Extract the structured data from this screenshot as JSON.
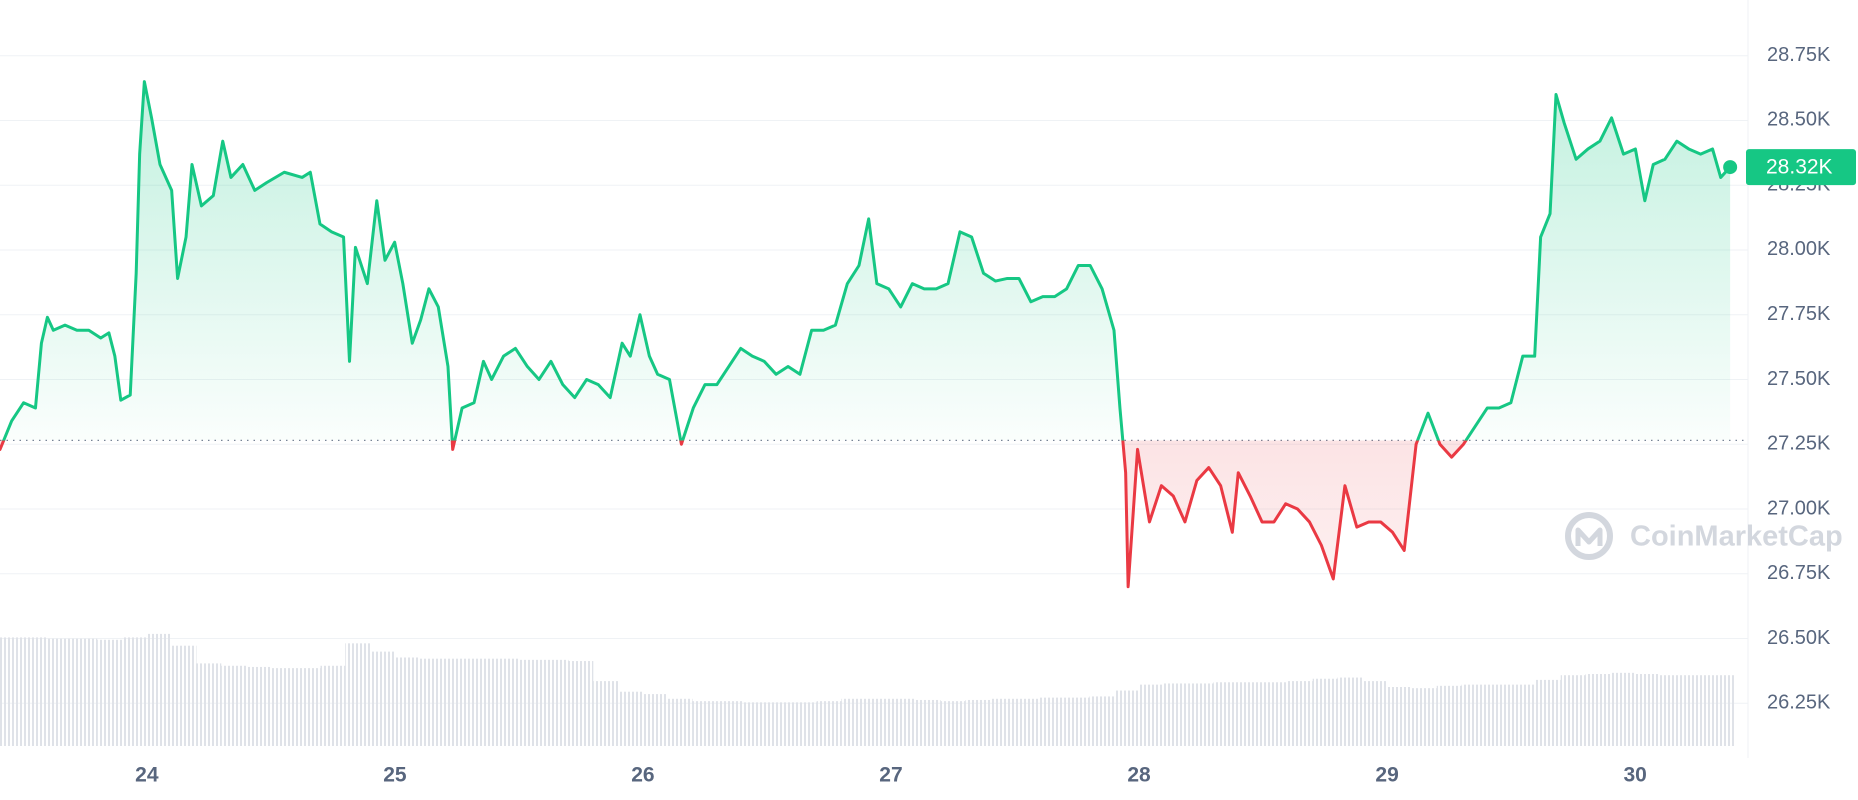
{
  "chart_data": {
    "type": "line",
    "x": [
      23.408,
      23.455,
      23.503,
      23.551,
      23.575,
      23.599,
      23.623,
      23.67,
      23.718,
      23.766,
      23.814,
      23.847,
      23.871,
      23.895,
      23.933,
      23.957,
      23.971,
      23.99,
      24.019,
      24.053,
      24.1,
      24.124,
      24.158,
      24.182,
      24.22,
      24.268,
      24.306,
      24.339,
      24.387,
      24.435,
      24.483,
      24.554,
      24.626,
      24.659,
      24.698,
      24.745,
      24.793,
      24.817,
      24.841,
      24.889,
      24.927,
      24.96,
      24.999,
      25.032,
      25.07,
      25.104,
      25.137,
      25.175,
      25.214,
      25.233,
      25.271,
      25.319,
      25.357,
      25.39,
      25.438,
      25.486,
      25.534,
      25.581,
      25.629,
      25.677,
      25.725,
      25.773,
      25.82,
      25.868,
      25.916,
      25.949,
      25.988,
      26.026,
      26.059,
      26.107,
      26.155,
      26.203,
      26.25,
      26.298,
      26.346,
      26.394,
      26.441,
      26.489,
      26.537,
      26.585,
      26.633,
      26.68,
      26.728,
      26.776,
      26.824,
      26.871,
      26.91,
      26.943,
      26.991,
      27.039,
      27.086,
      27.134,
      27.182,
      27.23,
      27.278,
      27.325,
      27.373,
      27.421,
      27.469,
      27.516,
      27.564,
      27.612,
      27.66,
      27.708,
      27.755,
      27.803,
      27.851,
      27.899,
      27.923,
      27.946,
      27.956,
      27.994,
      28.042,
      28.09,
      28.138,
      28.185,
      28.233,
      28.281,
      28.329,
      28.376,
      28.4,
      28.448,
      28.496,
      28.544,
      28.591,
      28.639,
      28.687,
      28.735,
      28.783,
      28.83,
      28.878,
      28.926,
      28.974,
      29.022,
      29.069,
      29.117,
      29.165,
      29.213,
      29.26,
      29.308,
      29.356,
      29.404,
      29.451,
      29.499,
      29.547,
      29.595,
      29.619,
      29.657,
      29.681,
      29.714,
      29.762,
      29.81,
      29.858,
      29.905,
      29.953,
      30.001,
      30.039,
      30.073,
      30.12,
      30.168,
      30.216,
      30.264,
      30.312,
      30.345,
      30.383
    ],
    "values": [
      27230,
      27340,
      27410,
      27390,
      27640,
      27740,
      27690,
      27710,
      27690,
      27690,
      27660,
      27680,
      27590,
      27420,
      27440,
      27910,
      28370,
      28650,
      28510,
      28330,
      28230,
      27890,
      28050,
      28330,
      28170,
      28210,
      28420,
      28280,
      28330,
      28230,
      28260,
      28300,
      28280,
      28300,
      28100,
      28070,
      28050,
      27570,
      28010,
      27870,
      28190,
      27960,
      28030,
      27870,
      27640,
      27730,
      27850,
      27780,
      27550,
      27230,
      27390,
      27410,
      27570,
      27500,
      27590,
      27620,
      27550,
      27500,
      27570,
      27480,
      27430,
      27500,
      27480,
      27430,
      27640,
      27590,
      27750,
      27590,
      27520,
      27500,
      27250,
      27390,
      27480,
      27480,
      27550,
      27620,
      27590,
      27570,
      27520,
      27550,
      27520,
      27690,
      27690,
      27710,
      27870,
      27940,
      28120,
      27870,
      27850,
      27780,
      27870,
      27850,
      27850,
      27870,
      28070,
      28050,
      27910,
      27880,
      27890,
      27890,
      27800,
      27820,
      27820,
      27850,
      27940,
      27940,
      27850,
      27690,
      27390,
      27140,
      26700,
      27230,
      26950,
      27090,
      27050,
      26950,
      27110,
      27160,
      27090,
      26910,
      27140,
      27050,
      26950,
      26950,
      27020,
      27000,
      26950,
      26860,
      26730,
      27090,
      26930,
      26950,
      26950,
      26910,
      26840,
      27250,
      27370,
      27250,
      27200,
      27250,
      27320,
      27390,
      27390,
      27410,
      27590,
      27590,
      28050,
      28140,
      28600,
      28490,
      28350,
      28390,
      28420,
      28510,
      28370,
      28390,
      28190,
      28330,
      28350,
      28420,
      28390,
      28370,
      28390,
      28280,
      28320
    ],
    "baseline": 27265,
    "up_color": "#16c784",
    "down_color": "#ea3943",
    "last_price_label": "28.32K",
    "xlim": [
      23.408,
      30.455
    ],
    "xticks": [
      24,
      25,
      26,
      27,
      28,
      29,
      30
    ],
    "ylim": [
      26085,
      28965
    ],
    "yticks": [
      {
        "value": 26250,
        "label": "26.25K"
      },
      {
        "value": 26500,
        "label": "26.50K"
      },
      {
        "value": 26750,
        "label": "26.75K"
      },
      {
        "value": 27000,
        "label": "27.00K"
      },
      {
        "value": 27250,
        "label": "27.25K"
      },
      {
        "value": 27500,
        "label": "27.50K"
      },
      {
        "value": 27750,
        "label": "27.75K"
      },
      {
        "value": 28000,
        "label": "28.00K"
      },
      {
        "value": 28250,
        "label": "28.25K"
      },
      {
        "value": 28500,
        "label": "28.50K"
      },
      {
        "value": 28750,
        "label": "28.75K"
      }
    ],
    "grid": true,
    "volume": {
      "color": "#dfe2e8",
      "ylim": [
        0,
        100
      ],
      "x": [
        23.45,
        23.55,
        23.65,
        23.75,
        23.85,
        23.95,
        24.05,
        24.15,
        24.25,
        24.35,
        24.45,
        24.55,
        24.65,
        24.75,
        24.85,
        24.95,
        25.05,
        25.15,
        25.25,
        25.35,
        25.45,
        25.55,
        25.65,
        25.75,
        25.85,
        25.95,
        26.05,
        26.15,
        26.25,
        26.35,
        26.45,
        26.55,
        26.65,
        26.75,
        26.85,
        26.95,
        27.05,
        27.15,
        27.25,
        27.35,
        27.45,
        27.55,
        27.65,
        27.75,
        27.85,
        27.95,
        28.05,
        28.15,
        28.25,
        28.35,
        28.45,
        28.55,
        28.65,
        28.75,
        28.85,
        28.95,
        29.05,
        29.15,
        29.25,
        29.35,
        29.45,
        29.55,
        29.65,
        29.75,
        29.85,
        29.95,
        30.05,
        30.15,
        30.25,
        30.35
      ],
      "values": [
        92,
        92,
        91,
        91,
        90,
        92,
        95,
        85,
        70,
        68,
        67,
        66,
        66,
        68,
        87,
        80,
        75,
        74,
        74,
        74,
        74,
        73,
        73,
        72,
        55,
        46,
        44,
        40,
        38,
        38,
        37,
        37,
        37,
        38,
        40,
        40,
        40,
        39,
        38,
        39,
        40,
        40,
        41,
        41,
        42,
        47,
        52,
        53,
        53,
        54,
        54,
        54,
        55,
        57,
        58,
        55,
        50,
        49,
        51,
        52,
        52,
        52,
        56,
        60,
        61,
        62,
        61,
        60,
        60,
        60
      ]
    },
    "watermark": "CoinMarketCap"
  }
}
